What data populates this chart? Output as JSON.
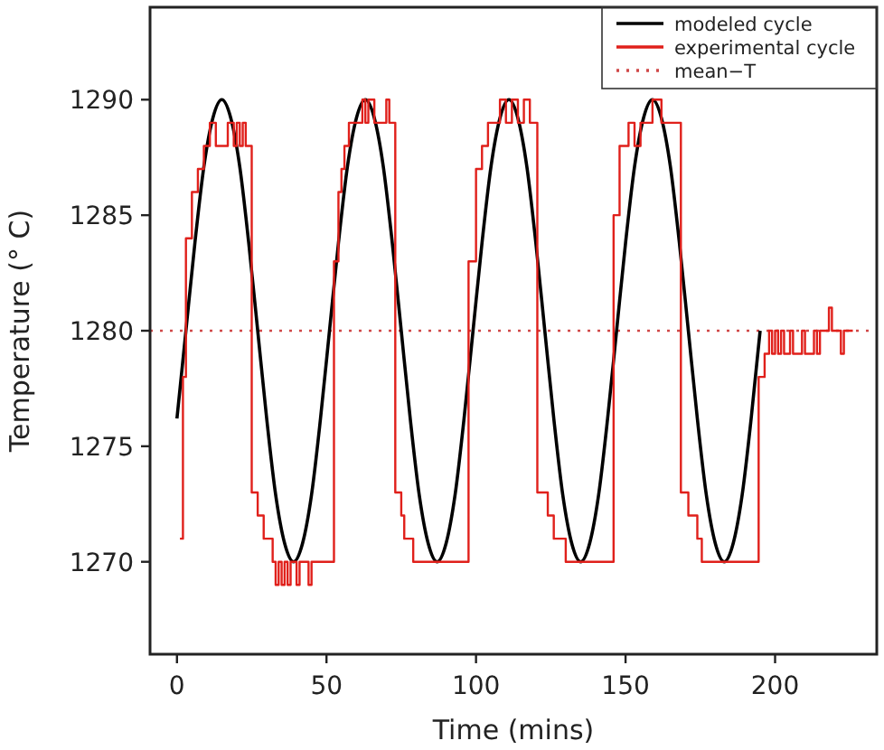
{
  "chart_data": {
    "type": "line",
    "xlabel": "Time (mins)",
    "ylabel": "Temperature (° C)",
    "xlim": [
      -9,
      234
    ],
    "ylim": [
      1266,
      1294
    ],
    "xticks": [
      0,
      50,
      100,
      150,
      200
    ],
    "yticks": [
      1270,
      1275,
      1280,
      1285,
      1290
    ],
    "grid": false,
    "legend": "top right",
    "marker": "none",
    "series": [
      {
        "name": "modeled cycle",
        "color": "#000000",
        "line_style": "solid",
        "x": [
          0,
          3,
          6,
          9,
          12,
          15,
          18,
          21,
          24,
          27,
          30,
          33,
          36,
          39,
          42,
          45,
          48,
          51,
          54,
          57,
          60,
          63,
          66,
          69,
          72,
          75,
          78,
          81,
          84,
          87,
          90,
          93,
          96,
          99,
          102,
          105,
          108,
          111,
          114,
          117,
          120,
          123,
          126,
          129,
          132,
          135,
          138,
          141,
          144,
          147,
          150,
          153,
          156,
          159,
          162,
          165,
          168,
          171,
          174,
          177,
          180,
          183,
          186,
          189,
          192,
          195
        ],
        "values": [
          1276.2,
          1280,
          1283.8,
          1287.1,
          1289.2,
          1290,
          1289.2,
          1287.1,
          1283.8,
          1280,
          1276.2,
          1272.9,
          1270.8,
          1270,
          1270.8,
          1272.9,
          1276.2,
          1280,
          1283.8,
          1287.1,
          1289.2,
          1290,
          1289.2,
          1287.1,
          1283.8,
          1280,
          1276.2,
          1272.9,
          1270.8,
          1270,
          1270.8,
          1272.9,
          1276.2,
          1280,
          1283.8,
          1287.1,
          1289.2,
          1290,
          1289.2,
          1287.1,
          1283.8,
          1280,
          1276.2,
          1272.9,
          1270.8,
          1270,
          1270.8,
          1272.9,
          1276.2,
          1280,
          1283.8,
          1287.1,
          1289.2,
          1290,
          1289.2,
          1287.1,
          1283.8,
          1280,
          1276.2,
          1272.9,
          1270.8,
          1270,
          1270.8,
          1272.9,
          1276.2,
          1280
        ]
      },
      {
        "name": "experimental cycle",
        "type": "step",
        "color": "#e0201b",
        "line_style": "solid",
        "x": [
          1,
          2,
          3,
          5,
          7,
          9,
          11,
          13,
          17,
          19,
          20,
          21,
          22,
          23,
          25,
          27,
          29,
          32,
          33,
          34,
          35,
          36,
          37,
          38,
          40,
          41,
          44,
          45,
          52.5,
          54,
          55,
          56,
          57.5,
          62,
          63,
          64,
          66,
          70,
          71,
          73,
          75,
          76,
          79,
          97.5,
          100,
          102,
          104,
          108,
          110,
          112,
          114,
          116,
          118,
          120.5,
          124,
          126,
          130,
          146,
          148,
          151,
          153,
          155,
          159,
          162,
          168.5,
          171,
          174,
          175.5,
          194.5,
          196.5,
          198,
          199,
          200,
          201,
          202,
          203,
          205,
          206,
          209,
          210,
          213,
          214,
          215,
          218,
          219,
          222,
          223,
          226
        ],
        "values": [
          1271,
          1278,
          1284,
          1286,
          1287,
          1288,
          1289,
          1288,
          1289,
          1288,
          1289,
          1288,
          1289,
          1288,
          1273,
          1272,
          1271,
          1270,
          1269,
          1270,
          1269,
          1270,
          1269,
          1270,
          1269,
          1270,
          1269,
          1270,
          1283,
          1286,
          1287,
          1288,
          1289,
          1290,
          1289,
          1290,
          1289,
          1290,
          1289,
          1273,
          1272,
          1271,
          1270,
          1283,
          1287,
          1288,
          1289,
          1290,
          1289,
          1290,
          1289,
          1290,
          1289,
          1273,
          1272,
          1271,
          1270,
          1285,
          1288,
          1289,
          1288,
          1289,
          1290,
          1289,
          1273,
          1272,
          1271,
          1270,
          1278,
          1279,
          1280,
          1279,
          1280,
          1279,
          1280,
          1279,
          1280,
          1279,
          1280,
          1279,
          1280,
          1279,
          1280,
          1281,
          1280,
          1279,
          1280,
          1280
        ]
      }
    ],
    "ref_lines": [
      {
        "axis": "y",
        "value": 1280,
        "label": "mean−T",
        "color": "#d04848",
        "line_style": "dotted"
      }
    ]
  }
}
